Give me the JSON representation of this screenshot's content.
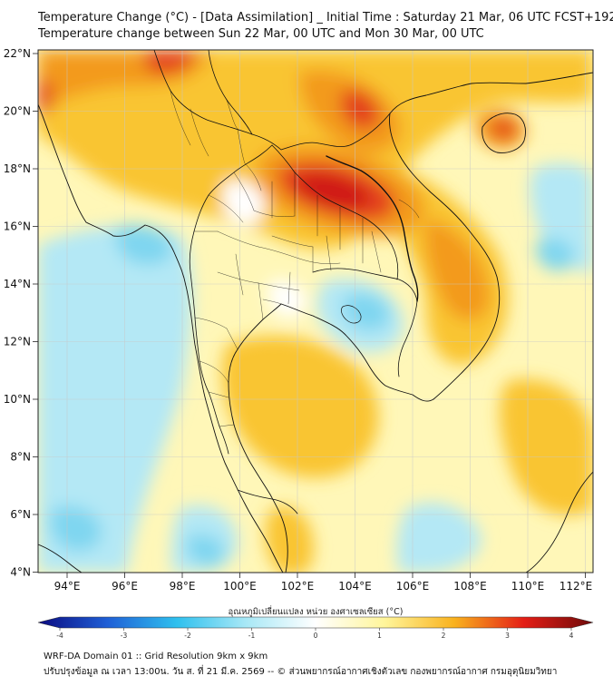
{
  "title": {
    "line1": "Temperature Change (°C) - [Data Assimilation] _ Initial Time : Saturday 21 Mar, 06 UTC FCST+192",
    "line2": "Temperature change between Sun 22 Mar, 00 UTC and Mon 30 Mar, 00 UTC"
  },
  "axes": {
    "lat_labels": [
      "22°N",
      "20°N",
      "18°N",
      "16°N",
      "14°N",
      "12°N",
      "10°N",
      "8°N",
      "6°N",
      "4°N"
    ],
    "lon_labels": [
      "94°E",
      "96°E",
      "98°E",
      "100°E",
      "102°E",
      "104°E",
      "106°E",
      "108°E",
      "110°E",
      "112°E"
    ]
  },
  "colorbar": {
    "title": "อุณหภูมิเปลี่ยนแปลง หน่วย องศาเซลเซียส (°C)",
    "ticks": [
      "-4",
      "-3",
      "-2",
      "-1",
      "0",
      "1",
      "2",
      "3",
      "4"
    ],
    "range": [
      -4,
      4
    ],
    "stops": [
      {
        "v": -4,
        "c": "#0a0a80"
      },
      {
        "v": -3,
        "c": "#1f5fd6"
      },
      {
        "v": -2,
        "c": "#2fc0ee"
      },
      {
        "v": -1,
        "c": "#a8e8f6"
      },
      {
        "v": 0,
        "c": "#ffffff"
      },
      {
        "v": 1,
        "c": "#fff59a"
      },
      {
        "v": 2,
        "c": "#f9b21e"
      },
      {
        "v": 3,
        "c": "#e41e16"
      },
      {
        "v": 4,
        "c": "#6e0a0a"
      }
    ]
  },
  "footer": {
    "line1": "WRF-DA Domain 01 :: Grid Resolution 9km x 9km",
    "line2": "ปรับปรุงข้อมูล ณ เวลา 13:00น. วัน ส. ที่ 21 มี.ค. 2569 -- © ส่วนพยากรณ์อากาศเชิงตัวเลข กองพยากรณ์อากาศ กรมอุตุนิยมวิทยา"
  },
  "colors": {
    "field_base": "#fff7b8",
    "warm": "#f9c531",
    "warmer": "#f39a1c",
    "hot": "#e4421a",
    "hottest": "#cf1814",
    "cool": "#b4e8f5",
    "cooler": "#7fd6f0",
    "white": "#ffffff",
    "border": "#111111"
  }
}
